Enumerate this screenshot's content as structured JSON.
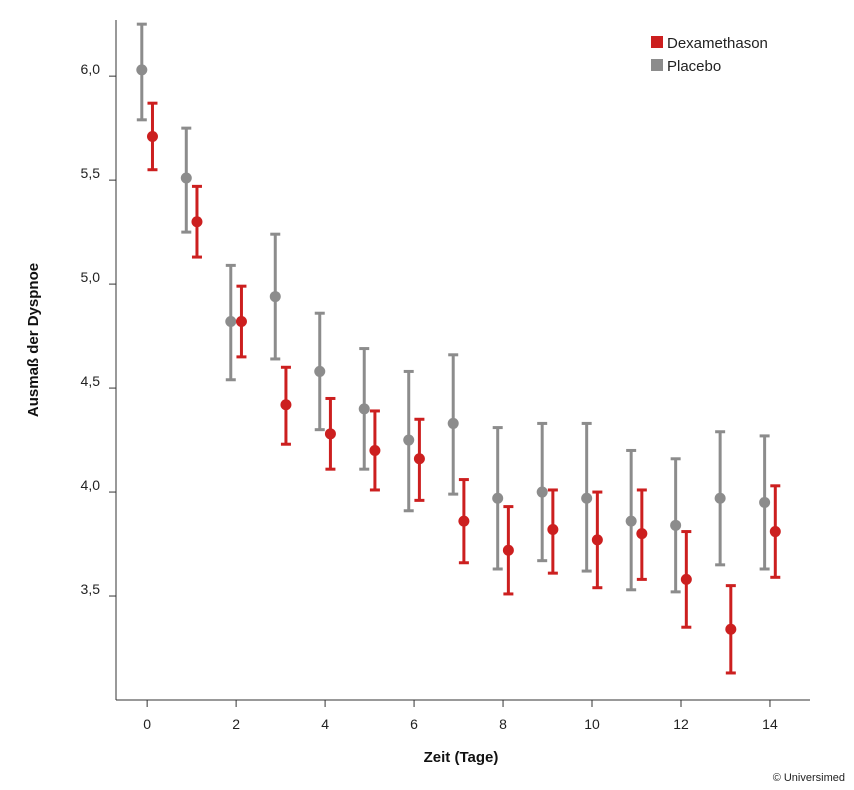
{
  "chart_data": {
    "type": "scatter",
    "xlabel": "Zeit (Tage)",
    "ylabel": "Ausmaß der Dyspnoe",
    "x_ticks": [
      0,
      2,
      4,
      6,
      8,
      10,
      12,
      14
    ],
    "x_tick_labels": [
      "0",
      "2",
      "4",
      "6",
      "8",
      "10",
      "12",
      "14"
    ],
    "y_ticks": [
      3.5,
      4.0,
      4.5,
      5.0,
      5.5,
      6.0
    ],
    "y_tick_labels": [
      "3,5",
      "4,0",
      "4,5",
      "5,0",
      "5,5",
      "6,0"
    ],
    "xlim": [
      -0.7,
      14.9
    ],
    "ylim": [
      3.0,
      6.27
    ],
    "grid": false,
    "legend_position": "top-right",
    "series": [
      {
        "name": "Dexamethason",
        "color": "#cc1f1f",
        "x": [
          0,
          1,
          2,
          3,
          4,
          5,
          6,
          7,
          8,
          9,
          10,
          11,
          12,
          13,
          14
        ],
        "y": [
          5.71,
          5.3,
          4.82,
          4.42,
          4.28,
          4.2,
          4.16,
          3.86,
          3.72,
          3.82,
          3.77,
          3.8,
          3.58,
          3.34,
          3.81
        ],
        "error_low": [
          5.55,
          5.13,
          4.65,
          4.23,
          4.11,
          4.01,
          3.96,
          3.66,
          3.51,
          3.61,
          3.54,
          3.58,
          3.35,
          3.13,
          3.59
        ],
        "error_high": [
          5.87,
          5.47,
          4.99,
          4.6,
          4.45,
          4.39,
          4.35,
          4.06,
          3.93,
          4.01,
          4.0,
          4.01,
          3.81,
          3.55,
          4.03
        ]
      },
      {
        "name": "Placebo",
        "color": "#8c8c8c",
        "x": [
          0,
          1,
          2,
          3,
          4,
          5,
          6,
          7,
          8,
          9,
          10,
          11,
          12,
          13,
          14
        ],
        "y": [
          6.03,
          5.51,
          4.82,
          4.94,
          4.58,
          4.4,
          4.25,
          4.33,
          3.97,
          4.0,
          3.97,
          3.86,
          3.84,
          3.97,
          3.95
        ],
        "error_low": [
          5.79,
          5.25,
          4.54,
          4.64,
          4.3,
          4.11,
          3.91,
          3.99,
          3.63,
          3.67,
          3.62,
          3.53,
          3.52,
          3.65,
          3.63
        ],
        "error_high": [
          6.25,
          5.75,
          5.09,
          5.24,
          4.86,
          4.69,
          4.58,
          4.66,
          4.31,
          4.33,
          4.33,
          4.2,
          4.16,
          4.29,
          4.27
        ]
      }
    ]
  },
  "credit": "© Universimed"
}
